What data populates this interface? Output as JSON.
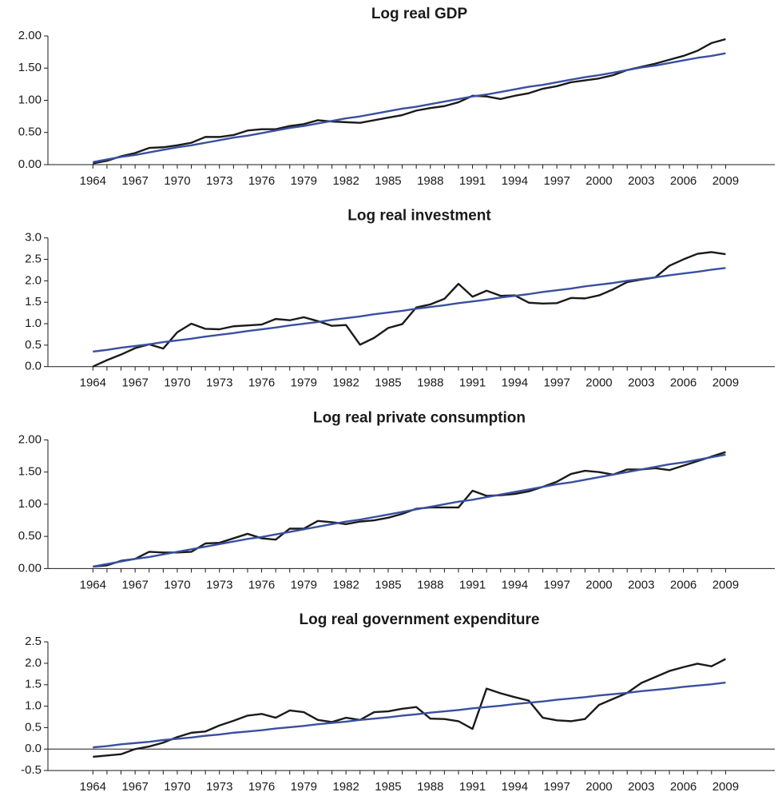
{
  "chart_data": [
    {
      "type": "line",
      "title": "Log real GDP",
      "x": [
        1964,
        1965,
        1966,
        1967,
        1968,
        1969,
        1970,
        1971,
        1972,
        1973,
        1974,
        1975,
        1976,
        1977,
        1978,
        1979,
        1980,
        1981,
        1982,
        1983,
        1984,
        1985,
        1986,
        1987,
        1988,
        1989,
        1990,
        1991,
        1992,
        1993,
        1994,
        1995,
        1996,
        1997,
        1998,
        1999,
        2000,
        2001,
        2002,
        2003,
        2004,
        2005,
        2006,
        2007,
        2008,
        2009
      ],
      "series": [
        {
          "color": "#1a1a1a",
          "values": [
            0.02,
            0.06,
            0.13,
            0.18,
            0.26,
            0.27,
            0.3,
            0.34,
            0.43,
            0.43,
            0.46,
            0.53,
            0.55,
            0.55,
            0.6,
            0.63,
            0.69,
            0.67,
            0.66,
            0.65,
            0.69,
            0.73,
            0.77,
            0.84,
            0.88,
            0.91,
            0.97,
            1.07,
            1.06,
            1.02,
            1.07,
            1.11,
            1.18,
            1.22,
            1.28,
            1.31,
            1.34,
            1.39,
            1.47,
            1.52,
            1.57,
            1.63,
            1.69,
            1.77,
            1.89,
            1.95
          ]
        },
        {
          "color": "#3a4fa0",
          "values": [
            0.04,
            0.08,
            0.12,
            0.15,
            0.19,
            0.23,
            0.27,
            0.3,
            0.34,
            0.38,
            0.42,
            0.45,
            0.49,
            0.53,
            0.57,
            0.6,
            0.64,
            0.68,
            0.72,
            0.75,
            0.79,
            0.83,
            0.87,
            0.9,
            0.94,
            0.98,
            1.02,
            1.06,
            1.09,
            1.13,
            1.17,
            1.21,
            1.24,
            1.28,
            1.32,
            1.36,
            1.39,
            1.43,
            1.47,
            1.51,
            1.54,
            1.58,
            1.62,
            1.66,
            1.69,
            1.73
          ]
        }
      ],
      "xlim": [
        1960.8,
        2012.5
      ],
      "xticks": [
        1964,
        1967,
        1970,
        1973,
        1976,
        1979,
        1982,
        1985,
        1988,
        1991,
        1994,
        1997,
        2000,
        2003,
        2006,
        2009
      ],
      "ylim": [
        0,
        2
      ],
      "yticks": [
        {
          "value": 0,
          "label": "0.00"
        },
        {
          "value": 0.5,
          "label": "0.50"
        },
        {
          "value": 1,
          "label": "1.00"
        },
        {
          "value": 1.5,
          "label": "1.50"
        },
        {
          "value": 2,
          "label": "2.00"
        }
      ]
    },
    {
      "type": "line",
      "title": "Log real investment",
      "x": [
        1964,
        1965,
        1966,
        1967,
        1968,
        1969,
        1970,
        1971,
        1972,
        1973,
        1974,
        1975,
        1976,
        1977,
        1978,
        1979,
        1980,
        1981,
        1982,
        1983,
        1984,
        1985,
        1986,
        1987,
        1988,
        1989,
        1990,
        1991,
        1992,
        1993,
        1994,
        1995,
        1996,
        1997,
        1998,
        1999,
        2000,
        2001,
        2002,
        2003,
        2004,
        2005,
        2006,
        2007,
        2008,
        2009
      ],
      "series": [
        {
          "color": "#1a1a1a",
          "values": [
            0.0,
            0.15,
            0.28,
            0.43,
            0.52,
            0.42,
            0.8,
            1.0,
            0.88,
            0.87,
            0.94,
            0.96,
            0.98,
            1.11,
            1.08,
            1.15,
            1.06,
            0.95,
            0.97,
            0.51,
            0.67,
            0.9,
            0.99,
            1.38,
            1.45,
            1.58,
            1.93,
            1.63,
            1.77,
            1.65,
            1.66,
            1.49,
            1.47,
            1.48,
            1.6,
            1.59,
            1.66,
            1.8,
            1.97,
            2.03,
            2.08,
            2.35,
            2.5,
            2.63,
            2.67,
            2.62
          ]
        },
        {
          "color": "#3a4fa0",
          "values": [
            0.35,
            0.39,
            0.44,
            0.48,
            0.52,
            0.57,
            0.61,
            0.65,
            0.7,
            0.74,
            0.78,
            0.83,
            0.87,
            0.91,
            0.96,
            1.0,
            1.04,
            1.09,
            1.13,
            1.17,
            1.22,
            1.26,
            1.3,
            1.35,
            1.39,
            1.43,
            1.48,
            1.52,
            1.56,
            1.61,
            1.65,
            1.69,
            1.74,
            1.78,
            1.82,
            1.87,
            1.91,
            1.95,
            2.0,
            2.04,
            2.08,
            2.13,
            2.17,
            2.21,
            2.26,
            2.3
          ]
        }
      ],
      "xlim": [
        1960.8,
        2012.5
      ],
      "xticks": [
        1964,
        1967,
        1970,
        1973,
        1976,
        1979,
        1982,
        1985,
        1988,
        1991,
        1994,
        1997,
        2000,
        2003,
        2006,
        2009
      ],
      "ylim": [
        0,
        3
      ],
      "yticks": [
        {
          "value": 0,
          "label": "0.0"
        },
        0.5,
        {
          "value": 1,
          "label": "1.0"
        },
        1.5,
        {
          "value": 2,
          "label": "2.0"
        },
        2.5,
        {
          "value": 3,
          "label": "3.0"
        }
      ]
    },
    {
      "type": "line",
      "title": "Log real private consumption",
      "x": [
        1964,
        1965,
        1966,
        1967,
        1968,
        1969,
        1970,
        1971,
        1972,
        1973,
        1974,
        1975,
        1976,
        1977,
        1978,
        1979,
        1980,
        1981,
        1982,
        1983,
        1984,
        1985,
        1986,
        1987,
        1988,
        1989,
        1990,
        1991,
        1992,
        1993,
        1994,
        1995,
        1996,
        1997,
        1998,
        1999,
        2000,
        2001,
        2002,
        2003,
        2004,
        2005,
        2006,
        2007,
        2008,
        2009
      ],
      "series": [
        {
          "color": "#1a1a1a",
          "values": [
            0.03,
            0.05,
            0.12,
            0.15,
            0.26,
            0.25,
            0.25,
            0.26,
            0.39,
            0.4,
            0.47,
            0.54,
            0.47,
            0.45,
            0.62,
            0.62,
            0.74,
            0.72,
            0.69,
            0.73,
            0.75,
            0.79,
            0.85,
            0.93,
            0.95,
            0.95,
            0.95,
            1.21,
            1.13,
            1.14,
            1.16,
            1.2,
            1.27,
            1.35,
            1.47,
            1.52,
            1.5,
            1.46,
            1.54,
            1.54,
            1.56,
            1.53,
            1.6,
            1.67,
            1.74,
            1.81
          ]
        },
        {
          "color": "#3a4fa0",
          "values": [
            0.03,
            0.07,
            0.11,
            0.15,
            0.18,
            0.22,
            0.26,
            0.3,
            0.34,
            0.38,
            0.42,
            0.46,
            0.49,
            0.53,
            0.57,
            0.61,
            0.65,
            0.69,
            0.73,
            0.76,
            0.8,
            0.84,
            0.88,
            0.92,
            0.96,
            1.0,
            1.04,
            1.07,
            1.11,
            1.15,
            1.19,
            1.23,
            1.27,
            1.31,
            1.34,
            1.38,
            1.42,
            1.46,
            1.5,
            1.54,
            1.58,
            1.62,
            1.65,
            1.69,
            1.73,
            1.77
          ]
        }
      ],
      "xlim": [
        1960.8,
        2012.5
      ],
      "xticks": [
        1964,
        1967,
        1970,
        1973,
        1976,
        1979,
        1982,
        1985,
        1988,
        1991,
        1994,
        1997,
        2000,
        2003,
        2006,
        2009
      ],
      "ylim": [
        0,
        2
      ],
      "yticks": [
        {
          "value": 0,
          "label": "0.00"
        },
        {
          "value": 0.5,
          "label": "0.50"
        },
        {
          "value": 1,
          "label": "1.00"
        },
        {
          "value": 1.5,
          "label": "1.50"
        },
        {
          "value": 2,
          "label": "2.00"
        }
      ]
    },
    {
      "type": "line",
      "title": "Log real government expenditure",
      "x": [
        1964,
        1965,
        1966,
        1967,
        1968,
        1969,
        1970,
        1971,
        1972,
        1973,
        1974,
        1975,
        1976,
        1977,
        1978,
        1979,
        1980,
        1981,
        1982,
        1983,
        1984,
        1985,
        1986,
        1987,
        1988,
        1989,
        1990,
        1991,
        1992,
        1993,
        1994,
        1995,
        1996,
        1997,
        1998,
        1999,
        2000,
        2001,
        2002,
        2003,
        2004,
        2005,
        2006,
        2007,
        2008,
        2009
      ],
      "series": [
        {
          "color": "#1a1a1a",
          "values": [
            -0.18,
            -0.15,
            -0.12,
            0.0,
            0.06,
            0.15,
            0.28,
            0.38,
            0.41,
            0.55,
            0.66,
            0.78,
            0.82,
            0.73,
            0.9,
            0.86,
            0.68,
            0.63,
            0.73,
            0.68,
            0.86,
            0.88,
            0.94,
            0.98,
            0.71,
            0.7,
            0.65,
            0.47,
            1.41,
            1.3,
            1.21,
            1.13,
            0.73,
            0.67,
            0.65,
            0.7,
            1.03,
            1.17,
            1.31,
            1.54,
            1.68,
            1.82,
            1.91,
            1.99,
            1.93,
            2.1
          ]
        },
        {
          "color": "#3a4fa0",
          "values": [
            0.04,
            0.07,
            0.11,
            0.14,
            0.17,
            0.21,
            0.24,
            0.27,
            0.31,
            0.34,
            0.38,
            0.41,
            0.44,
            0.48,
            0.51,
            0.54,
            0.58,
            0.61,
            0.64,
            0.68,
            0.71,
            0.74,
            0.78,
            0.81,
            0.85,
            0.88,
            0.91,
            0.95,
            0.98,
            1.01,
            1.05,
            1.08,
            1.11,
            1.15,
            1.18,
            1.21,
            1.25,
            1.28,
            1.31,
            1.35,
            1.38,
            1.41,
            1.45,
            1.48,
            1.51,
            1.55
          ]
        }
      ],
      "xlim": [
        1960.8,
        2012.5
      ],
      "xticks": [
        1964,
        1967,
        1970,
        1973,
        1976,
        1979,
        1982,
        1985,
        1988,
        1991,
        1994,
        1997,
        2000,
        2003,
        2006,
        2009
      ],
      "ylim": [
        -0.5,
        2.5
      ],
      "yticks": [
        -0.5,
        {
          "value": 0,
          "label": "0.0"
        },
        0.5,
        {
          "value": 1,
          "label": "1.0"
        },
        1.5,
        {
          "value": 2,
          "label": "2.0"
        },
        2.5
      ]
    }
  ]
}
